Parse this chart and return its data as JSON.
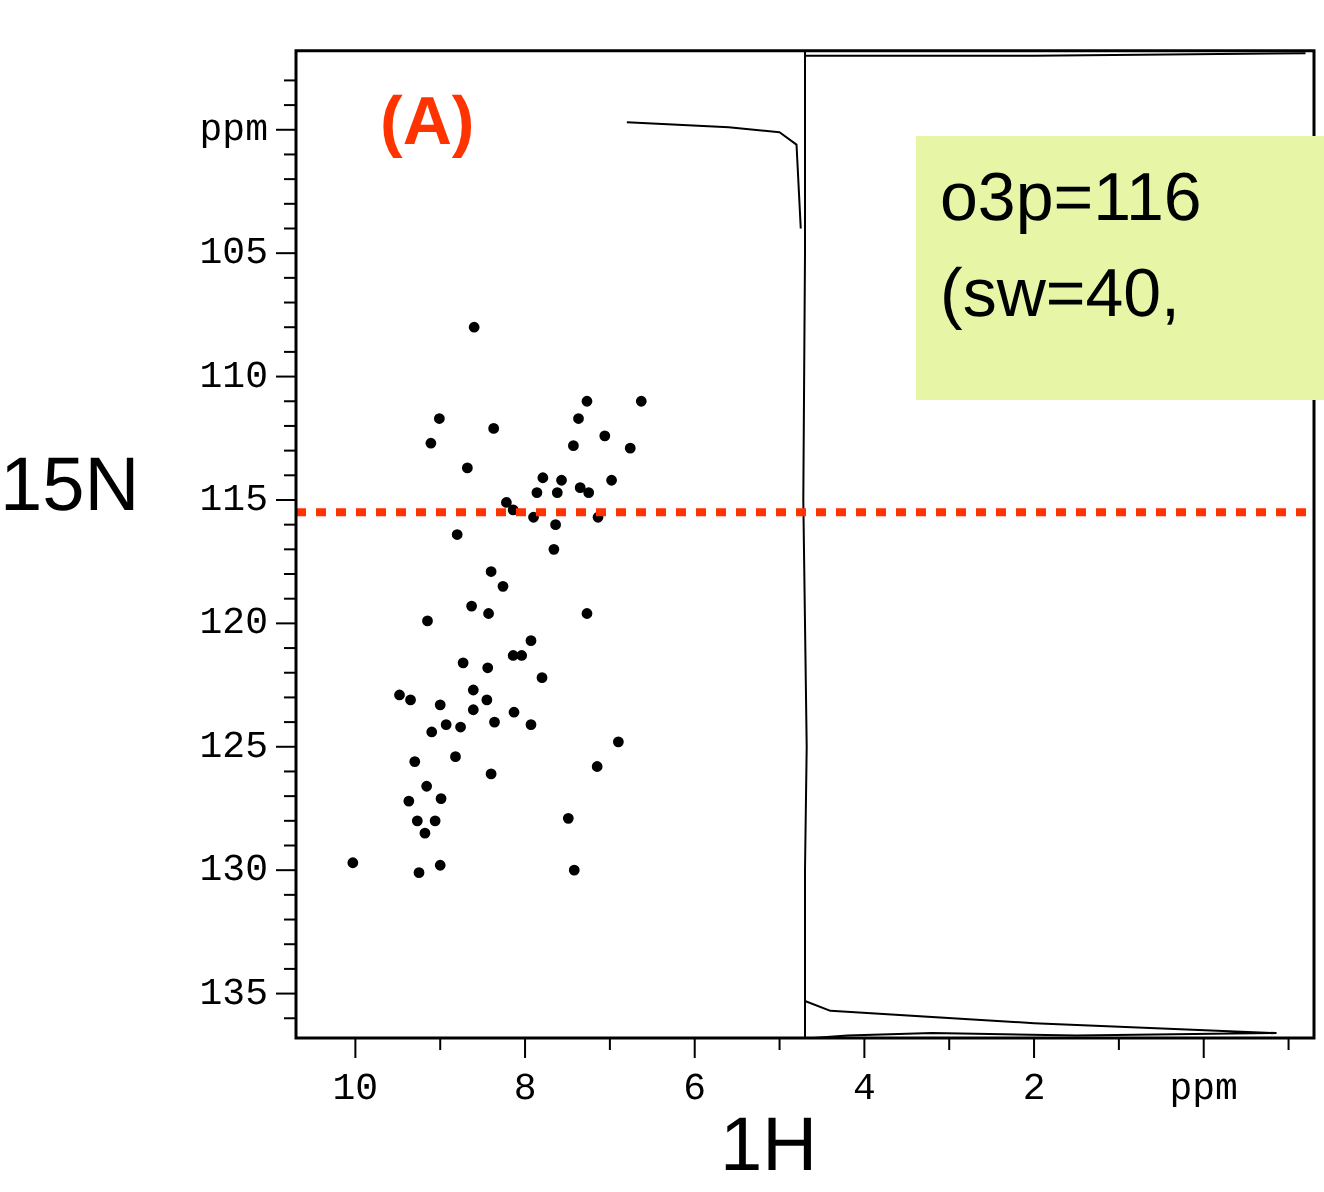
{
  "chart_data": {
    "type": "scatter",
    "xlabel": "1H",
    "ylabel": "15N",
    "xlim": [
      10.7,
      -1.3
    ],
    "ylim": [
      136.8,
      96.8
    ],
    "xticks": [
      10,
      {
        "value": 9,
        "label": null
      },
      8,
      {
        "value": 7,
        "label": null
      },
      6,
      {
        "value": 5,
        "label": null
      },
      4,
      {
        "value": 3,
        "label": null
      },
      2,
      {
        "value": 1,
        "label": null
      },
      {
        "value": 0,
        "label": "ppm"
      },
      {
        "value": -1,
        "label": null
      }
    ],
    "yticks": [
      {
        "value": 98,
        "label": null
      },
      {
        "value": 99,
        "label": null
      },
      {
        "value": 100,
        "label": "ppm"
      },
      {
        "value": 101,
        "label": null
      },
      {
        "value": 102,
        "label": null
      },
      {
        "value": 103,
        "label": null
      },
      {
        "value": 104,
        "label": null
      },
      105,
      {
        "value": 106,
        "label": null
      },
      {
        "value": 107,
        "label": null
      },
      {
        "value": 108,
        "label": null
      },
      {
        "value": 109,
        "label": null
      },
      110,
      {
        "value": 111,
        "label": null
      },
      {
        "value": 112,
        "label": null
      },
      {
        "value": 113,
        "label": null
      },
      {
        "value": 114,
        "label": null
      },
      115,
      {
        "value": 116,
        "label": null
      },
      {
        "value": 117,
        "label": null
      },
      {
        "value": 118,
        "label": null
      },
      {
        "value": 119,
        "label": null
      },
      120,
      {
        "value": 121,
        "label": null
      },
      {
        "value": 122,
        "label": null
      },
      {
        "value": 123,
        "label": null
      },
      {
        "value": 124,
        "label": null
      },
      125,
      {
        "value": 126,
        "label": null
      },
      {
        "value": 127,
        "label": null
      },
      {
        "value": 128,
        "label": null
      },
      {
        "value": 129,
        "label": null
      },
      130,
      {
        "value": 131,
        "label": null
      },
      {
        "value": 132,
        "label": null
      },
      {
        "value": 133,
        "label": null
      },
      {
        "value": 134,
        "label": null
      },
      135,
      {
        "value": 136,
        "label": null
      }
    ],
    "grid": false,
    "legend": false,
    "marker": "circle",
    "series": [
      {
        "color": "#000000",
        "x": [
          8.6,
          9.01,
          9.11,
          8.37,
          7.27,
          7.37,
          6.63,
          7.06,
          7.43,
          6.76,
          8.68,
          6.98,
          7.79,
          7.57,
          7.35,
          7.25,
          7.86,
          7.62,
          8.22,
          8.14,
          7.9,
          7.64,
          7.14,
          8.8,
          7.66,
          8.4,
          8.26,
          8.63,
          9.15,
          8.43,
          7.27,
          7.93,
          8.14,
          8.04,
          8.73,
          8.44,
          7.8,
          9.48,
          9.35,
          8.61,
          8.45,
          9.0,
          8.61,
          8.13,
          8.93,
          7.93,
          8.36,
          9.1,
          8.76,
          8.82,
          9.3,
          6.9,
          7.15,
          8.4,
          9.16,
          9.37,
          8.99,
          9.27,
          9.06,
          7.49,
          9.18,
          10.03,
          9.25,
          9.0,
          7.42
        ],
        "values": [
          108.0,
          111.7,
          112.7,
          112.1,
          111.0,
          111.7,
          111.0,
          112.4,
          112.8,
          112.9,
          113.7,
          114.2,
          114.1,
          114.2,
          114.5,
          114.7,
          114.7,
          114.7,
          115.1,
          115.4,
          115.7,
          116.0,
          115.7,
          116.4,
          117.0,
          117.9,
          118.5,
          119.3,
          119.9,
          119.6,
          119.6,
          120.7,
          121.3,
          121.3,
          121.6,
          121.8,
          122.2,
          122.9,
          123.1,
          122.7,
          123.1,
          123.3,
          123.5,
          123.6,
          124.1,
          124.1,
          124.0,
          124.4,
          124.2,
          125.4,
          125.6,
          124.8,
          125.8,
          126.1,
          126.6,
          127.2,
          127.1,
          128.0,
          128.0,
          127.9,
          128.5,
          129.7,
          130.1,
          129.8,
          130.0
        ]
      },
      {
        "type": "line",
        "color": "#000000",
        "marker": "none",
        "x": [
          4.7,
          4.7,
          4.72,
          4.68,
          4.7,
          4.7
        ],
        "values": [
          96.8,
          105,
          115,
          125,
          130,
          136.8
        ]
      },
      {
        "type": "line",
        "color": "#000000",
        "marker": "none",
        "x": [
          6.8,
          5.6,
          5.0,
          4.8,
          4.75
        ],
        "values": [
          99.7,
          99.9,
          100.1,
          100.6,
          104
        ]
      },
      {
        "type": "line",
        "color": "#000000",
        "marker": "none",
        "x": [
          4.7,
          2.0,
          -1.2
        ],
        "values": [
          97.0,
          97.0,
          96.9
        ]
      },
      {
        "type": "line",
        "color": "#000000",
        "marker": "none",
        "x": [
          4.7,
          4.4,
          2.0,
          -0.85,
          1.5,
          3.2,
          4.2,
          4.6
        ],
        "values": [
          135.3,
          135.7,
          136.2,
          136.6,
          136.7,
          136.6,
          136.7,
          136.8
        ]
      }
    ],
    "ref_lines": [
      {
        "axis": "y",
        "value": 115.5,
        "color": "#ff3300",
        "line_style": "dotted"
      }
    ],
    "annotations": [
      "(A)",
      "o3p=116",
      "(sw=40,"
    ]
  }
}
